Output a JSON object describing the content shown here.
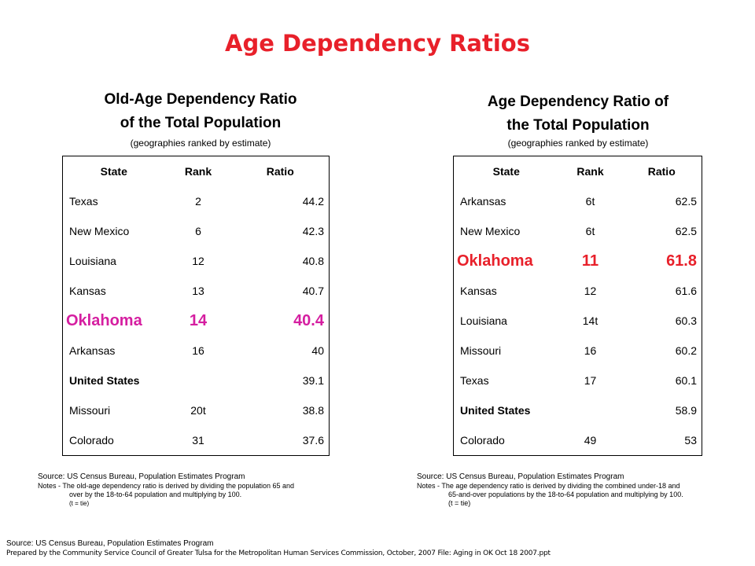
{
  "title": "Age Dependency Ratios",
  "left": {
    "title_line1": "Old-Age Dependency Ratio",
    "title_line2": "of the Total Population",
    "subtitle": "(geographies ranked by estimate)",
    "headers": [
      "State",
      "Rank",
      "Ratio"
    ],
    "rows": [
      {
        "state": "Texas",
        "rank": "2",
        "ratio": "44.2"
      },
      {
        "state": "New Mexico",
        "rank": "6",
        "ratio": "42.3"
      },
      {
        "state": "Louisiana",
        "rank": "12",
        "ratio": "40.8"
      },
      {
        "state": "Kansas",
        "rank": "13",
        "ratio": "40.7"
      },
      {
        "state": "Oklahoma",
        "rank": "14",
        "ratio": "40.4"
      },
      {
        "state": "Arkansas",
        "rank": "16",
        "ratio": "40"
      },
      {
        "state": "United States",
        "rank": "",
        "ratio": "39.1"
      },
      {
        "state": "Missouri",
        "rank": "20t",
        "ratio": "38.8"
      },
      {
        "state": "Colorado",
        "rank": "31",
        "ratio": "37.6"
      }
    ],
    "source": "Source: US Census Bureau, Population Estimates Program",
    "notes_line1": "Notes - The old-age dependency ratio is derived by dividing the population 65 and",
    "notes_line2": "over by the 18-to-64 population and multiplying by 100.",
    "notes_line3": "(t = tie)"
  },
  "right": {
    "title_line1": "Age Dependency Ratio of",
    "title_line2": "the Total Population",
    "subtitle": "(geographies ranked by estimate)",
    "headers": [
      "State",
      "Rank",
      "Ratio"
    ],
    "rows": [
      {
        "state": "Arkansas",
        "rank": "6t",
        "ratio": "62.5"
      },
      {
        "state": "New Mexico",
        "rank": "6t",
        "ratio": "62.5"
      },
      {
        "state": "Oklahoma",
        "rank": "11",
        "ratio": "61.8"
      },
      {
        "state": "Kansas",
        "rank": "12",
        "ratio": "61.6"
      },
      {
        "state": "Louisiana",
        "rank": "14t",
        "ratio": "60.3"
      },
      {
        "state": "Missouri",
        "rank": "16",
        "ratio": "60.2"
      },
      {
        "state": "Texas",
        "rank": "17",
        "ratio": "60.1"
      },
      {
        "state": "United States",
        "rank": "",
        "ratio": "58.9"
      },
      {
        "state": "Colorado",
        "rank": "49",
        "ratio": "53"
      }
    ],
    "source": "Source: US Census Bureau, Population Estimates Program",
    "notes_line1": "Notes - The age dependency ratio is derived by dividing the combined under-18 and",
    "notes_line2": "65-and-over populations by the 18-to-64 population and multiplying by 100.",
    "notes_line3": "(t = tie)"
  },
  "footer": {
    "source": "Source: US Census Bureau, Population Estimates Program",
    "prepared": "Prepared by the Community Service Council of Greater Tulsa for the Metropolitan Human Services Commission, October, 2007  File: Aging in OK Oct 18 2007.ppt"
  }
}
